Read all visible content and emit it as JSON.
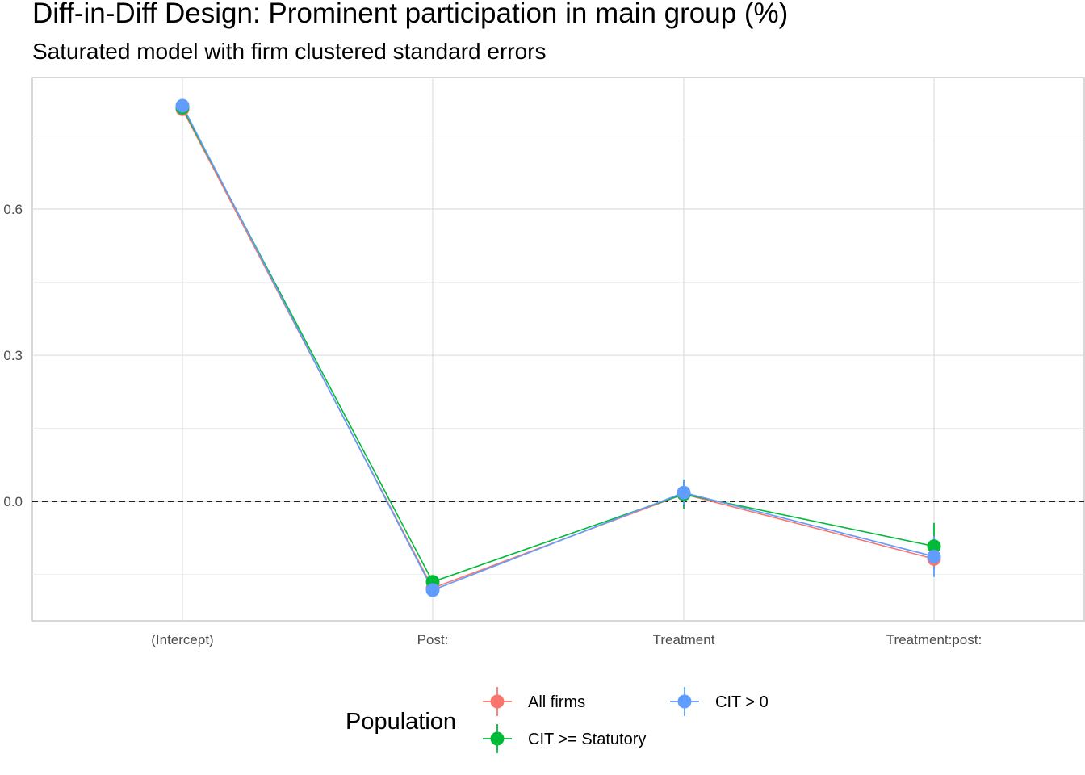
{
  "chart_data": {
    "type": "line",
    "title": "Diff-in-Diff Design: Prominent participation in main group (%)",
    "subtitle": "Saturated model with firm clustered standard errors",
    "xlabel": "",
    "ylabel": "",
    "categories": [
      "(Intercept)",
      "Post:",
      "Treatment",
      "Treatment:post:"
    ],
    "y_ticks": [
      0.0,
      0.3,
      0.6
    ],
    "y_tick_labels": [
      "0.0",
      "0.3",
      "0.6"
    ],
    "ylim": [
      -0.245,
      0.87
    ],
    "grid": true,
    "reference_line": {
      "y": 0.0,
      "style": "dashed"
    },
    "legend": {
      "title": "Population",
      "position": "bottom"
    },
    "series": [
      {
        "name": "All firms",
        "color": "#F8766D",
        "values": [
          0.805,
          -0.178,
          0.015,
          -0.118
        ],
        "ci_low": [
          0.8,
          -0.186,
          -0.01,
          -0.14
        ],
        "ci_high": [
          0.81,
          -0.17,
          0.04,
          -0.096
        ]
      },
      {
        "name": "CIT >= Statutory",
        "color": "#00BA38",
        "values": [
          0.808,
          -0.165,
          0.015,
          -0.092
        ],
        "ci_low": [
          0.803,
          -0.173,
          -0.015,
          -0.14
        ],
        "ci_high": [
          0.813,
          -0.157,
          0.045,
          -0.044
        ]
      },
      {
        "name": "CIT > 0",
        "color": "#619CFF",
        "values": [
          0.812,
          -0.182,
          0.018,
          -0.113
        ],
        "ci_low": [
          0.807,
          -0.19,
          -0.008,
          -0.155
        ],
        "ci_high": [
          0.817,
          -0.174,
          0.044,
          -0.071
        ]
      }
    ]
  }
}
